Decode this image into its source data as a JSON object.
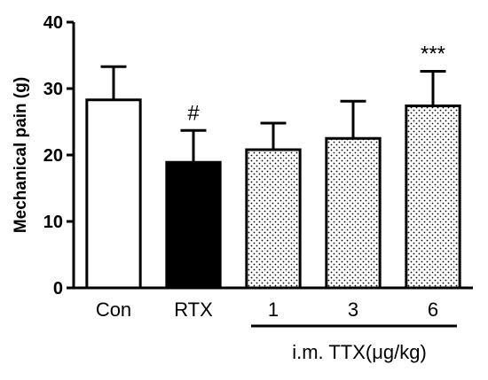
{
  "chart_data": {
    "type": "bar",
    "ylabel": "Mechanical pain (g)",
    "ylim": [
      0,
      40
    ],
    "yticks": [
      0,
      10,
      20,
      30,
      40
    ],
    "categories": [
      "Con",
      "RTX",
      "1",
      "3",
      "6"
    ],
    "values": [
      28.3,
      18.9,
      20.8,
      22.5,
      27.4
    ],
    "errors": [
      5.0,
      4.8,
      4.0,
      5.6,
      5.2
    ],
    "fills": [
      "white",
      "black",
      "dotted",
      "dotted",
      "dotted"
    ],
    "annotations": [
      "",
      "#",
      "",
      "",
      "***"
    ],
    "group_label": "i.m. TTX(μg/kg)",
    "grid": false,
    "legend": "none"
  }
}
